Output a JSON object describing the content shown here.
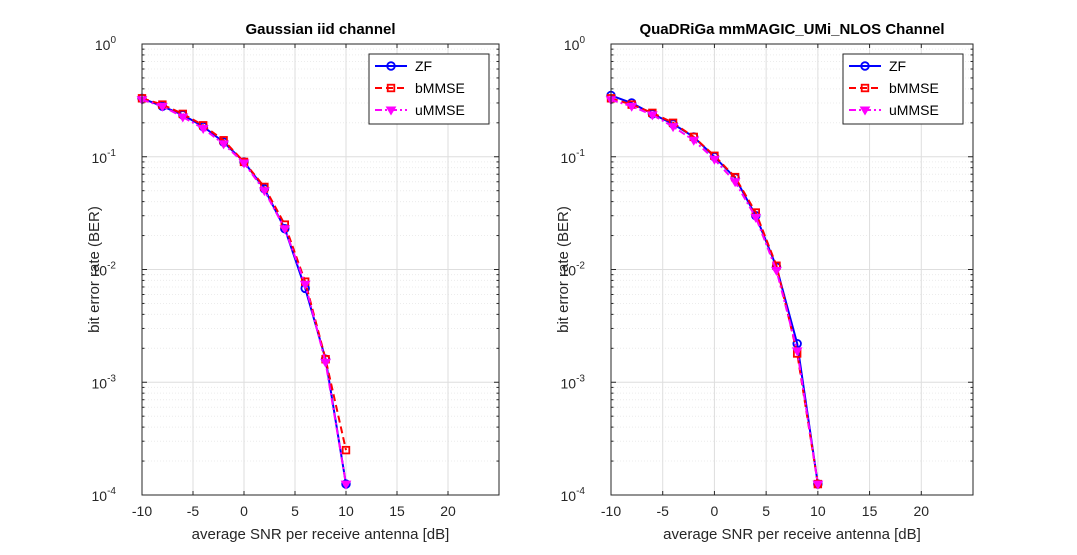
{
  "chart_data": [
    {
      "type": "line",
      "title": "Gaussian iid channel",
      "xlabel": "average SNR per receive antenna [dB]",
      "ylabel": "bit error rate (BER)",
      "xlim": [
        -10,
        25
      ],
      "ylim": [
        0.0001,
        1
      ],
      "yscale": "log",
      "grid": true,
      "minor_grid": true,
      "legend_position": "top-right",
      "xticks": [
        "-10",
        "-5",
        "0",
        "5",
        "10",
        "15",
        "20"
      ],
      "yticks": [
        {
          "base": "10",
          "exp": "0"
        },
        {
          "base": "10",
          "exp": "-1"
        },
        {
          "base": "10",
          "exp": "-2"
        },
        {
          "base": "10",
          "exp": "-3"
        },
        {
          "base": "10",
          "exp": "-4"
        }
      ],
      "series": [
        {
          "name": "ZF",
          "color": "#0000ff",
          "line": "solid",
          "marker": "circle",
          "x": [
            -10,
            -8,
            -6,
            -4,
            -2,
            0,
            2,
            4,
            6,
            8,
            10
          ],
          "y": [
            0.33,
            0.28,
            0.235,
            0.185,
            0.135,
            0.09,
            0.052,
            0.023,
            0.0068,
            0.0016,
            0.000125
          ]
        },
        {
          "name": "bMMSE",
          "color": "#ff0000",
          "line": "dashed",
          "marker": "square",
          "x": [
            -10,
            -8,
            -6,
            -4,
            -2,
            0,
            2,
            4,
            6,
            8,
            10
          ],
          "y": [
            0.33,
            0.29,
            0.24,
            0.19,
            0.14,
            0.09,
            0.054,
            0.025,
            0.0078,
            0.0016,
            0.00025
          ]
        },
        {
          "name": "uMMSE",
          "color": "#ff00ff",
          "line": "dashdot",
          "marker": "triangle-down",
          "x": [
            -10,
            -8,
            -6,
            -4,
            -2,
            0,
            2,
            4,
            6,
            8,
            10
          ],
          "y": [
            0.32,
            0.28,
            0.225,
            0.178,
            0.13,
            0.088,
            0.05,
            0.023,
            0.0074,
            0.0015,
            0.000125
          ]
        }
      ]
    },
    {
      "type": "line",
      "title": "QuaDRiGa mmMAGIC_UMi_NLOS Channel",
      "xlabel": "average SNR per receive antenna [dB]",
      "ylabel": "bit error rate (BER)",
      "xlim": [
        -10,
        25
      ],
      "ylim": [
        0.0001,
        1
      ],
      "yscale": "log",
      "grid": true,
      "minor_grid": true,
      "legend_position": "top-right",
      "xticks": [
        "-10",
        "-5",
        "0",
        "5",
        "10",
        "15",
        "20"
      ],
      "yticks": [
        {
          "base": "10",
          "exp": "0"
        },
        {
          "base": "10",
          "exp": "-1"
        },
        {
          "base": "10",
          "exp": "-2"
        },
        {
          "base": "10",
          "exp": "-3"
        },
        {
          "base": "10",
          "exp": "-4"
        }
      ],
      "series": [
        {
          "name": "ZF",
          "color": "#0000ff",
          "line": "solid",
          "marker": "circle",
          "x": [
            -10,
            -8,
            -6,
            -4,
            -2,
            0,
            2,
            4,
            6,
            8,
            10
          ],
          "y": [
            0.35,
            0.3,
            0.24,
            0.195,
            0.15,
            0.1,
            0.065,
            0.03,
            0.0105,
            0.0022,
            0.000125
          ]
        },
        {
          "name": "bMMSE",
          "color": "#ff0000",
          "line": "dashed",
          "marker": "square",
          "x": [
            -10,
            -8,
            -6,
            -4,
            -2,
            0,
            2,
            4,
            6,
            8,
            10
          ],
          "y": [
            0.33,
            0.29,
            0.245,
            0.2,
            0.15,
            0.102,
            0.066,
            0.032,
            0.0108,
            0.0018,
            0.000125
          ]
        },
        {
          "name": "uMMSE",
          "color": "#ff00ff",
          "line": "dashdot",
          "marker": "triangle-down",
          "x": [
            -10,
            -8,
            -6,
            -4,
            -2,
            0,
            2,
            4,
            6,
            8,
            10
          ],
          "y": [
            0.32,
            0.28,
            0.235,
            0.185,
            0.14,
            0.095,
            0.06,
            0.029,
            0.0098,
            0.0019,
            0.000125
          ]
        }
      ]
    }
  ]
}
